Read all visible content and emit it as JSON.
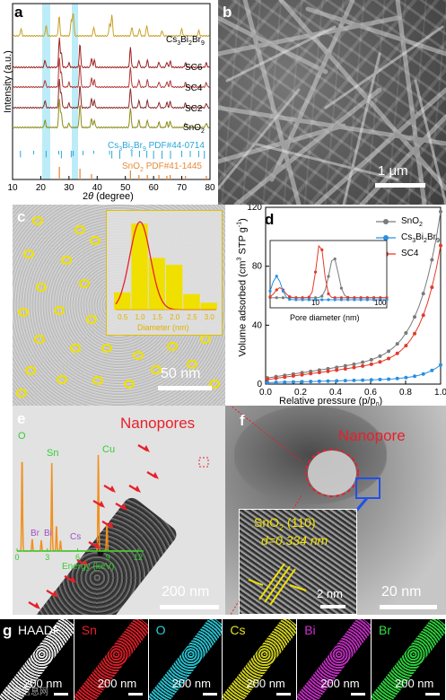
{
  "panel_a": {
    "label": "a",
    "ylabel": "Intensity (a.u.)",
    "xlabel_pre": "2",
    "xlabel_theta": "θ",
    "xlabel_post": " (degree)",
    "xticks": [
      "10",
      "20",
      "30",
      "40",
      "50",
      "60",
      "70",
      "80"
    ],
    "traces": [
      {
        "name": "Cs",
        "sub": "3",
        "name2": "Bi",
        "sub2": "2",
        "name3": "Br",
        "sub3": "9",
        "color": "#c9a227"
      },
      {
        "name": "SC6",
        "color": "#9e2020"
      },
      {
        "name": "SC4",
        "color": "#b23a3a"
      },
      {
        "name": "SC2",
        "color": "#8a2c2c"
      },
      {
        "name": "SnO",
        "sub": "2",
        "color": "#8c8c1a"
      }
    ],
    "ref1": {
      "pre": "Cs",
      "s1": "3",
      "mid": "Bi",
      "s2": "2",
      "mid2": "Br",
      "s3": "9",
      "post": " PDF#44-0714",
      "color": "#2aa7d9"
    },
    "ref2": {
      "pre": "SnO",
      "s1": "2",
      "post": " PDF#41-1445",
      "color": "#e88a3a"
    }
  },
  "panel_b": {
    "label": "b",
    "scale": "1 μm"
  },
  "panel_c": {
    "label": "c",
    "scale": "50 nm",
    "inset_xlabel": "Diameter (nm)",
    "inset_xticks": [
      "0.5",
      "1.0",
      "1.5",
      "2.0",
      "2.5",
      "3.0"
    ],
    "hist_values": [
      0.2,
      1.0,
      0.6,
      0.52,
      0.18,
      0.08
    ],
    "hist_bins": [
      0.5,
      1.0,
      1.5,
      2.0,
      2.5,
      3.0
    ]
  },
  "panel_d": {
    "label": "d",
    "ylabel_pre": "Volume adsorbed (cm",
    "ylabel_sup": "3",
    "ylabel_mid": " STP g",
    "ylabel_sup2": "-1",
    "ylabel_post": ")",
    "xlabel": "Relative pressure (p/p",
    "xlabel_sub": "0",
    "xlabel_post": ")",
    "yticks": [
      "0",
      "40",
      "80",
      "120"
    ],
    "xticks": [
      "0.0",
      "0.2",
      "0.4",
      "0.6",
      "0.8",
      "1.0"
    ],
    "inset_xlabel": "Pore diameter (nm)",
    "inset_xticks": [
      "10",
      "100"
    ],
    "legend": [
      {
        "pre": "SnO",
        "sub": "2",
        "color": "#7a7a7a"
      },
      {
        "pre": "Cs",
        "sub": "3",
        "mid": "Bi",
        "sub2": "2",
        "mid2": "Br",
        "sub3": "9",
        "color": "#2a8fe0"
      },
      {
        "pre": "SC4",
        "color": "#e23a2a"
      }
    ]
  },
  "panel_e": {
    "label": "e",
    "title": "Nanopores",
    "scale": "200 nm",
    "edx_labels": [
      "O",
      "Sn",
      "Cu",
      "Br",
      "Bi",
      "Cs"
    ],
    "edx_xlabel": "Energy (keV)",
    "edx_xticks": [
      "0",
      "3",
      "6",
      "9",
      "12"
    ]
  },
  "panel_f": {
    "label": "f",
    "title": "Nanopore",
    "scale": "20 nm",
    "inset_line1_pre": "SnO",
    "inset_line1_sub": "2",
    "inset_line1_post": " (110)",
    "inset_line2": "d=0.334 nm",
    "inset_scale": "2 nm"
  },
  "panel_g": {
    "label": "g",
    "maps": [
      {
        "name": "HAADF",
        "color": "#ffffff",
        "scale": "200 nm"
      },
      {
        "name": "Sn",
        "color": "#e8202a",
        "scale": "200 nm"
      },
      {
        "name": "O",
        "color": "#2ad0e0",
        "scale": "200 nm"
      },
      {
        "name": "Cs",
        "color": "#e0e020",
        "scale": "200 nm"
      },
      {
        "name": "Bi",
        "color": "#d030d0",
        "scale": "200 nm"
      },
      {
        "name": "Br",
        "color": "#30e040",
        "scale": "200 nm"
      }
    ]
  },
  "watermark": "仪器信息网"
}
